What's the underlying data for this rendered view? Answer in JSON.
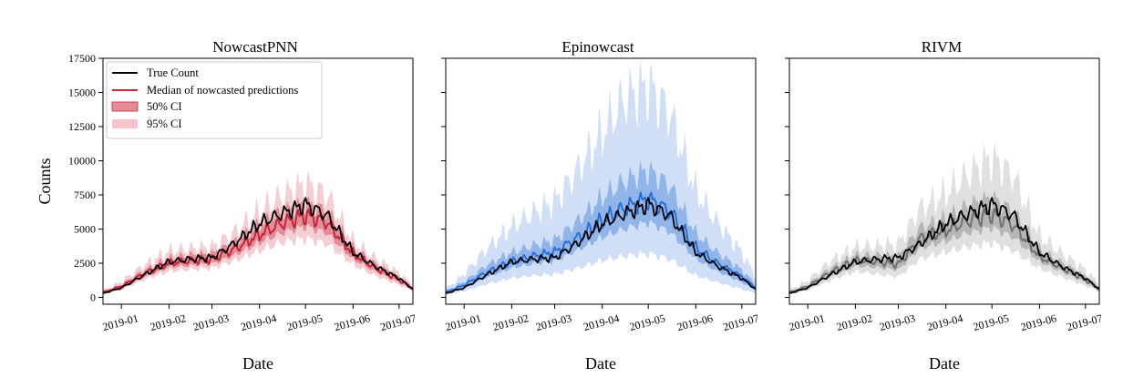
{
  "colors": {
    "true_count": "#000000",
    "nowcastpnn": "#c8243a",
    "epinowcast": "#2a6fd6",
    "rivm": "#707070"
  },
  "chart_data": [
    {
      "type": "line",
      "title": "NowcastPNN",
      "xlabel": "Date",
      "ylabel": "Counts",
      "xlim": [
        "2018-12-20",
        "2019-07-10"
      ],
      "ylim": [
        -500,
        17500
      ],
      "yticks": [
        0,
        2500,
        5000,
        7500,
        10000,
        12500,
        15000,
        17500
      ],
      "xticks": [
        "2019-01",
        "2019-02",
        "2019-03",
        "2019-04",
        "2019-05",
        "2019-06",
        "2019-07"
      ],
      "legend": {
        "position": "top-left",
        "entries": [
          "True Count",
          "Median of nowcasted predictions",
          "50% CI",
          "95% CI"
        ]
      },
      "series": [
        {
          "name": "True Count",
          "color": "#000000",
          "x": [
            "2018-12-20",
            "2019-01-01",
            "2019-01-15",
            "2019-02-01",
            "2019-02-15",
            "2019-03-01",
            "2019-03-15",
            "2019-04-01",
            "2019-04-15",
            "2019-05-01",
            "2019-05-15",
            "2019-06-01",
            "2019-06-15",
            "2019-07-01",
            "2019-07-10"
          ],
          "y": [
            300,
            700,
            1600,
            2600,
            2800,
            2900,
            3900,
            5400,
            6100,
            6800,
            6000,
            3300,
            2300,
            1400,
            600
          ]
        },
        {
          "name": "Median of nowcasted predictions",
          "color": "#c8243a",
          "x": [
            "2018-12-20",
            "2019-01-01",
            "2019-01-15",
            "2019-02-01",
            "2019-02-15",
            "2019-03-01",
            "2019-03-15",
            "2019-04-01",
            "2019-04-15",
            "2019-05-01",
            "2019-05-15",
            "2019-06-01",
            "2019-06-15",
            "2019-07-01",
            "2019-07-10"
          ],
          "y": [
            350,
            800,
            1700,
            2500,
            2700,
            2800,
            3500,
            4600,
            5400,
            6000,
            5500,
            3200,
            2200,
            1300,
            650
          ]
        },
        {
          "name": "50% CI",
          "color": "#c8243a",
          "x": [
            "2018-12-20",
            "2019-01-01",
            "2019-01-15",
            "2019-02-01",
            "2019-02-15",
            "2019-03-01",
            "2019-03-15",
            "2019-04-01",
            "2019-04-15",
            "2019-05-01",
            "2019-05-15",
            "2019-06-01",
            "2019-06-15",
            "2019-07-01",
            "2019-07-10"
          ],
          "low": [
            300,
            650,
            1450,
            2200,
            2350,
            2450,
            3050,
            4000,
            4700,
            5200,
            4700,
            2800,
            1900,
            1100,
            550
          ],
          "high": [
            420,
            950,
            1950,
            2900,
            3100,
            3200,
            4000,
            5300,
            6200,
            6900,
            6300,
            3600,
            2500,
            1500,
            750
          ]
        },
        {
          "name": "95% CI",
          "color": "#c8243a",
          "x": [
            "2018-12-20",
            "2019-01-01",
            "2019-01-15",
            "2019-02-01",
            "2019-02-15",
            "2019-03-01",
            "2019-03-15",
            "2019-04-01",
            "2019-04-15",
            "2019-05-01",
            "2019-05-15",
            "2019-06-01",
            "2019-06-15",
            "2019-07-01",
            "2019-07-10"
          ],
          "low": [
            250,
            550,
            1250,
            1900,
            2050,
            2150,
            2650,
            3400,
            4000,
            4300,
            3900,
            2400,
            1600,
            900,
            450
          ],
          "high": [
            500,
            1150,
            2300,
            3400,
            3600,
            3700,
            4700,
            6300,
            7400,
            8300,
            7500,
            4100,
            2900,
            1800,
            900
          ]
        }
      ]
    },
    {
      "type": "line",
      "title": "Epinowcast",
      "xlabel": "Date",
      "ylabel": "",
      "xlim": [
        "2018-12-20",
        "2019-07-10"
      ],
      "ylim": [
        -500,
        17500
      ],
      "xticks": [
        "2019-01",
        "2019-02",
        "2019-03",
        "2019-04",
        "2019-05",
        "2019-06",
        "2019-07"
      ],
      "series": [
        {
          "name": "True Count",
          "color": "#000000",
          "x": [
            "2018-12-20",
            "2019-01-01",
            "2019-01-15",
            "2019-02-01",
            "2019-02-15",
            "2019-03-01",
            "2019-03-15",
            "2019-04-01",
            "2019-04-15",
            "2019-05-01",
            "2019-05-15",
            "2019-06-01",
            "2019-06-15",
            "2019-07-01",
            "2019-07-10"
          ],
          "y": [
            300,
            700,
            1600,
            2600,
            2800,
            2900,
            3900,
            5400,
            6100,
            6800,
            6000,
            3300,
            2300,
            1400,
            600
          ]
        },
        {
          "name": "Median",
          "color": "#2a6fd6",
          "x": [
            "2018-12-20",
            "2019-01-01",
            "2019-01-15",
            "2019-02-01",
            "2019-02-15",
            "2019-03-01",
            "2019-03-15",
            "2019-04-01",
            "2019-04-15",
            "2019-05-01",
            "2019-05-15",
            "2019-06-01",
            "2019-06-15",
            "2019-07-01",
            "2019-07-10"
          ],
          "y": [
            350,
            900,
            1800,
            2600,
            3000,
            3300,
            4300,
            5600,
            6500,
            7200,
            6300,
            3600,
            2500,
            1500,
            700
          ]
        },
        {
          "name": "50% CI",
          "color": "#2a6fd6",
          "x": [
            "2018-12-20",
            "2019-01-01",
            "2019-01-15",
            "2019-02-01",
            "2019-02-15",
            "2019-03-01",
            "2019-03-15",
            "2019-04-01",
            "2019-04-15",
            "2019-05-01",
            "2019-05-15",
            "2019-06-01",
            "2019-06-15",
            "2019-07-01",
            "2019-07-10"
          ],
          "low": [
            300,
            700,
            1450,
            2150,
            2450,
            2650,
            3400,
            4400,
            5000,
            5500,
            4800,
            2800,
            1900,
            1100,
            500
          ],
          "high": [
            450,
            1150,
            2300,
            3300,
            3800,
            4200,
            5500,
            7300,
            8500,
            9300,
            8200,
            4700,
            3300,
            2000,
            950
          ]
        },
        {
          "name": "95% CI",
          "color": "#2a6fd6",
          "x": [
            "2018-12-20",
            "2019-01-01",
            "2019-01-15",
            "2019-02-01",
            "2019-02-15",
            "2019-03-01",
            "2019-03-15",
            "2019-04-01",
            "2019-04-15",
            "2019-05-01",
            "2019-05-15",
            "2019-06-01",
            "2019-06-15",
            "2019-07-01",
            "2019-07-10"
          ],
          "low": [
            200,
            450,
            950,
            1400,
            1600,
            1700,
            2100,
            2700,
            3000,
            3200,
            2800,
            1600,
            1100,
            600,
            300
          ],
          "high": [
            600,
            1700,
            3500,
            5200,
            6200,
            7000,
            9200,
            12000,
            14500,
            15500,
            13500,
            7800,
            5500,
            3300,
            1500
          ]
        }
      ]
    },
    {
      "type": "line",
      "title": "RIVM",
      "xlabel": "Date",
      "ylabel": "",
      "xlim": [
        "2018-12-20",
        "2019-07-10"
      ],
      "ylim": [
        -500,
        17500
      ],
      "xticks": [
        "2019-01",
        "2019-02",
        "2019-03",
        "2019-04",
        "2019-05",
        "2019-06",
        "2019-07"
      ],
      "series": [
        {
          "name": "True Count",
          "color": "#000000",
          "x": [
            "2018-12-20",
            "2019-01-01",
            "2019-01-15",
            "2019-02-01",
            "2019-02-15",
            "2019-03-01",
            "2019-03-15",
            "2019-04-01",
            "2019-04-15",
            "2019-05-01",
            "2019-05-15",
            "2019-06-01",
            "2019-06-15",
            "2019-07-01",
            "2019-07-10"
          ],
          "y": [
            300,
            700,
            1600,
            2600,
            2800,
            2900,
            3900,
            5400,
            6100,
            6800,
            6000,
            3300,
            2300,
            1400,
            600
          ]
        },
        {
          "name": "Median",
          "color": "#707070",
          "x": [
            "2018-12-20",
            "2019-01-01",
            "2019-01-15",
            "2019-02-01",
            "2019-02-15",
            "2019-03-01",
            "2019-03-15",
            "2019-04-01",
            "2019-04-15",
            "2019-05-01",
            "2019-05-15",
            "2019-06-01",
            "2019-06-15",
            "2019-07-01",
            "2019-07-10"
          ],
          "y": [
            350,
            800,
            1800,
            2700,
            2600,
            2400,
            4300,
            4900,
            5600,
            6100,
            5300,
            3000,
            2200,
            1300,
            600
          ]
        },
        {
          "name": "50% CI",
          "color": "#707070",
          "x": [
            "2018-12-20",
            "2019-01-01",
            "2019-01-15",
            "2019-02-01",
            "2019-02-15",
            "2019-03-01",
            "2019-03-15",
            "2019-04-01",
            "2019-04-15",
            "2019-05-01",
            "2019-05-15",
            "2019-06-01",
            "2019-06-15",
            "2019-07-01",
            "2019-07-10"
          ],
          "low": [
            300,
            650,
            1500,
            2300,
            2200,
            2000,
            3600,
            4100,
            4700,
            5100,
            4400,
            2600,
            1900,
            1100,
            500
          ],
          "high": [
            420,
            950,
            2100,
            3100,
            3100,
            3000,
            5100,
            5800,
            6700,
            7300,
            6300,
            3500,
            2600,
            1550,
            750
          ]
        },
        {
          "name": "95% CI",
          "color": "#707070",
          "x": [
            "2018-12-20",
            "2019-01-01",
            "2019-01-15",
            "2019-02-01",
            "2019-02-15",
            "2019-03-01",
            "2019-03-15",
            "2019-04-01",
            "2019-04-15",
            "2019-05-01",
            "2019-05-15",
            "2019-06-01",
            "2019-06-15",
            "2019-07-01",
            "2019-07-10"
          ],
          "low": [
            220,
            500,
            1200,
            1900,
            1700,
            1500,
            2800,
            3300,
            3700,
            4000,
            3400,
            2100,
            1500,
            850,
            400
          ],
          "high": [
            550,
            1250,
            2600,
            3700,
            3800,
            3900,
            6500,
            7600,
            9000,
            10200,
            8900,
            4500,
            3300,
            2000,
            1000
          ]
        }
      ]
    }
  ]
}
